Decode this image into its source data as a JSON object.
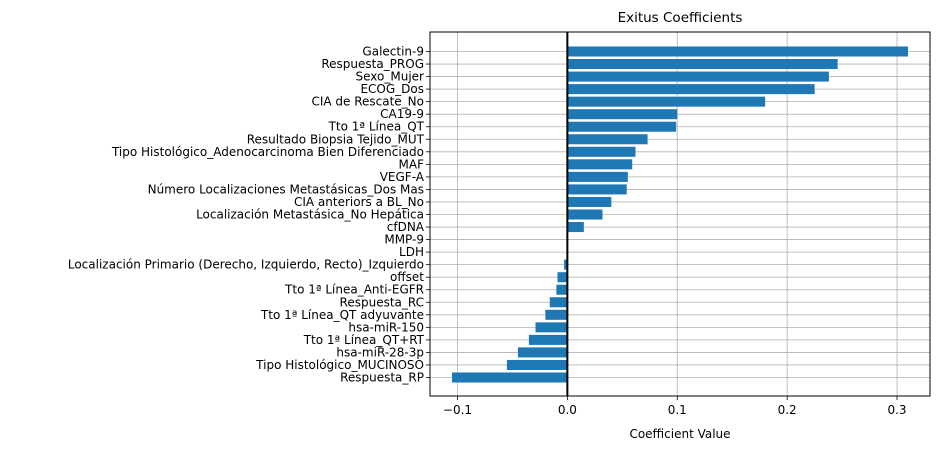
{
  "chart_data": {
    "type": "bar",
    "orientation": "horizontal",
    "title": "Exitus Coefficients",
    "xlabel": "Coefficient Value",
    "ylabel": "",
    "xlim": [
      -0.125,
      0.33
    ],
    "xticks": [
      -0.1,
      0.0,
      0.1,
      0.2,
      0.3
    ],
    "xtick_labels": [
      "−0.1",
      "0.0",
      "0.1",
      "0.2",
      "0.3"
    ],
    "grid": true,
    "zero_line": true,
    "bar_color": "#1f77b4",
    "categories": [
      "Galectin-9",
      "Respuesta_PROG",
      "Sexo_Mujer",
      "ECOG_Dos",
      "CIA de Rescate_No",
      "CA19-9",
      "Tto 1ª Línea_QT",
      "Resultado Biopsia Tejido_MUT",
      "Tipo Histológico_Adenocarcinoma Bien Diferenciado",
      "MAF",
      "VEGF-A",
      "Número Localizaciones Metastásicas_Dos Mas",
      "CIA anteriors a BL_No",
      "Localización Metastásica_No Hepática",
      "cfDNA",
      "MMP-9",
      "LDH",
      "Localización Primario (Derecho, Izquierdo, Recto)_Izquierdo",
      "offset",
      "Tto 1ª Línea_Anti-EGFR",
      "Respuesta_RC",
      "Tto 1ª Línea_QT adyuvante",
      "hsa-miR-150",
      "Tto 1ª Línea_QT+RT",
      "hsa-miR-28-3p",
      "Tipo Histológico_MUCINOSO",
      "Respuesta_RP"
    ],
    "values": [
      0.31,
      0.246,
      0.238,
      0.225,
      0.18,
      0.1,
      0.099,
      0.073,
      0.062,
      0.059,
      0.055,
      0.054,
      0.04,
      0.032,
      0.015,
      0.0,
      0.0,
      -0.003,
      -0.009,
      -0.01,
      -0.016,
      -0.02,
      -0.029,
      -0.035,
      -0.045,
      -0.055,
      -0.105
    ]
  }
}
